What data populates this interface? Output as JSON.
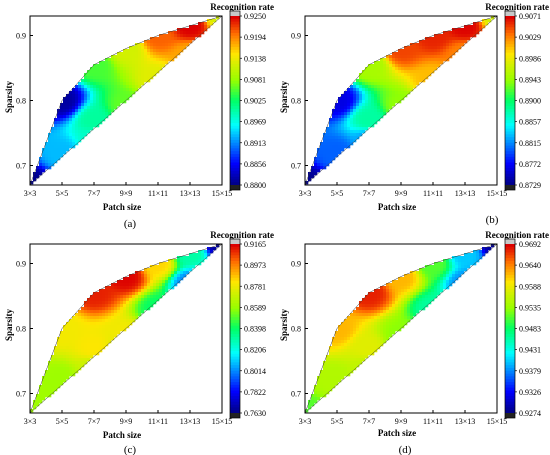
{
  "figure": {
    "panels": [
      {
        "caption": "(a)",
        "xlabel": "Patch size",
        "ylabel": "Sparsity",
        "colorbar_title": "Recognition rate",
        "colorbar_ticks": [
          "0.9250",
          "0.9194",
          "0.9138",
          "0.9081",
          "0.9025",
          "0.8969",
          "0.8913",
          "0.8856",
          "0.8800"
        ]
      },
      {
        "caption": "(b)",
        "xlabel": "Patch size",
        "ylabel": "Sparsity",
        "colorbar_title": "Recognition rate",
        "colorbar_ticks": [
          "0.9071",
          "0.9029",
          "0.8986",
          "0.8943",
          "0.8900",
          "0.8857",
          "0.8815",
          "0.8772",
          "0.8729"
        ]
      },
      {
        "caption": "(c)",
        "xlabel": "Patch size",
        "ylabel": "Sparsity",
        "colorbar_title": "Recognition rate",
        "colorbar_ticks": [
          "0.9165",
          "0.8973",
          "0.8781",
          "0.8589",
          "0.8398",
          "0.8206",
          "0.8014",
          "0.7822",
          "0.7630"
        ]
      },
      {
        "caption": "(d)",
        "xlabel": "Patch size",
        "ylabel": "Sparsity",
        "colorbar_title": "Recognition rate",
        "colorbar_ticks": [
          "0.9692",
          "0.9640",
          "0.9588",
          "0.9535",
          "0.9483",
          "0.9431",
          "0.9379",
          "0.9326",
          "0.9274"
        ]
      }
    ]
  },
  "chart_data": [
    {
      "type": "heatmap",
      "title": "",
      "xlabel": "Patch size",
      "ylabel": "Sparsity",
      "x_categories": [
        "3×3",
        "5×5",
        "7×7",
        "9×9",
        "11×11",
        "13×13",
        "15×15"
      ],
      "y_ticks": [
        0.7,
        0.8,
        0.9
      ],
      "ylim": [
        0.67,
        0.93
      ],
      "colorbar": {
        "label": "Recognition rate",
        "min": 0.88,
        "max": 0.925
      },
      "upper_boundary": [
        [
          0,
          0.67
        ],
        [
          1,
          0.8
        ],
        [
          2,
          0.855
        ],
        [
          3,
          0.88
        ],
        [
          4,
          0.9
        ],
        [
          5,
          0.915
        ],
        [
          6,
          0.93
        ]
      ],
      "lower_boundary": [
        [
          0,
          0.67
        ],
        [
          6,
          0.93
        ]
      ],
      "values": [
        [
          0,
          0.67,
          0.88
        ],
        [
          1,
          0.8,
          0.881
        ],
        [
          2,
          0.855,
          0.905
        ],
        [
          3,
          0.88,
          0.912
        ],
        [
          4,
          0.9,
          0.921
        ],
        [
          5,
          0.915,
          0.925
        ],
        [
          6,
          0.93,
          0.912
        ],
        [
          1,
          0.72,
          0.893
        ],
        [
          2,
          0.77,
          0.9
        ],
        [
          3,
          0.79,
          0.906
        ],
        [
          4,
          0.83,
          0.913
        ],
        [
          5,
          0.87,
          0.918
        ],
        [
          2,
          0.74,
          0.898
        ],
        [
          3,
          0.76,
          0.901
        ]
      ]
    },
    {
      "type": "heatmap",
      "title": "",
      "xlabel": "Patch size",
      "ylabel": "Sparsity",
      "x_categories": [
        "3×3",
        "5×5",
        "7×7",
        "9×9",
        "11×11",
        "13×13",
        "15×15"
      ],
      "y_ticks": [
        0.7,
        0.8,
        0.9
      ],
      "ylim": [
        0.67,
        0.93
      ],
      "colorbar": {
        "label": "Recognition rate",
        "min": 0.8729,
        "max": 0.9071
      },
      "upper_boundary": [
        [
          0,
          0.67
        ],
        [
          1,
          0.8
        ],
        [
          2,
          0.855
        ],
        [
          3,
          0.88
        ],
        [
          4,
          0.9
        ],
        [
          5,
          0.915
        ],
        [
          6,
          0.93
        ]
      ],
      "lower_boundary": [
        [
          0,
          0.67
        ],
        [
          6,
          0.93
        ]
      ],
      "values": [
        [
          0,
          0.67,
          0.873
        ],
        [
          1,
          0.8,
          0.876
        ],
        [
          2,
          0.855,
          0.895
        ],
        [
          3,
          0.88,
          0.905
        ],
        [
          4,
          0.9,
          0.906
        ],
        [
          5,
          0.915,
          0.907
        ],
        [
          6,
          0.93,
          0.897
        ],
        [
          1,
          0.72,
          0.88
        ],
        [
          2,
          0.77,
          0.888
        ],
        [
          3,
          0.79,
          0.894
        ],
        [
          4,
          0.83,
          0.901
        ],
        [
          5,
          0.87,
          0.903
        ],
        [
          2,
          0.74,
          0.882
        ],
        [
          3,
          0.76,
          0.888
        ]
      ]
    },
    {
      "type": "heatmap",
      "title": "",
      "xlabel": "Patch size",
      "ylabel": "Sparsity",
      "x_categories": [
        "3×3",
        "5×5",
        "7×7",
        "9×9",
        "11×11",
        "13×13",
        "15×15"
      ],
      "y_ticks": [
        0.7,
        0.8,
        0.9
      ],
      "ylim": [
        0.67,
        0.93
      ],
      "colorbar": {
        "label": "Recognition rate",
        "min": 0.763,
        "max": 0.9165
      },
      "upper_boundary": [
        [
          0,
          0.67
        ],
        [
          1,
          0.8
        ],
        [
          2,
          0.855
        ],
        [
          3,
          0.88
        ],
        [
          4,
          0.9
        ],
        [
          5,
          0.915
        ],
        [
          6,
          0.93
        ]
      ],
      "lower_boundary": [
        [
          0,
          0.67
        ],
        [
          6,
          0.93
        ]
      ],
      "values": [
        [
          0,
          0.67,
          0.86
        ],
        [
          1,
          0.8,
          0.88
        ],
        [
          2,
          0.855,
          0.912
        ],
        [
          3,
          0.88,
          0.916
        ],
        [
          4,
          0.9,
          0.885
        ],
        [
          5,
          0.915,
          0.83
        ],
        [
          6,
          0.93,
          0.765
        ],
        [
          1,
          0.72,
          0.86
        ],
        [
          2,
          0.77,
          0.882
        ],
        [
          3,
          0.79,
          0.88
        ],
        [
          4,
          0.83,
          0.84
        ],
        [
          5,
          0.87,
          0.8
        ],
        [
          2,
          0.74,
          0.87
        ],
        [
          3,
          0.76,
          0.86
        ]
      ]
    },
    {
      "type": "heatmap",
      "title": "",
      "xlabel": "Patch size",
      "ylabel": "Sparsity",
      "x_categories": [
        "3×3",
        "5×5",
        "7×7",
        "9×9",
        "11×11",
        "13×13",
        "15×15"
      ],
      "y_ticks": [
        0.7,
        0.8,
        0.9
      ],
      "ylim": [
        0.67,
        0.93
      ],
      "colorbar": {
        "label": "Recognition rate",
        "min": 0.9274,
        "max": 0.9692
      },
      "upper_boundary": [
        [
          0,
          0.67
        ],
        [
          1,
          0.8
        ],
        [
          2,
          0.855
        ],
        [
          3,
          0.88
        ],
        [
          4,
          0.9
        ],
        [
          5,
          0.915
        ],
        [
          6,
          0.93
        ]
      ],
      "lower_boundary": [
        [
          0,
          0.67
        ],
        [
          6,
          0.93
        ]
      ],
      "values": [
        [
          0,
          0.67,
          0.951
        ],
        [
          1,
          0.8,
          0.962
        ],
        [
          2,
          0.855,
          0.968
        ],
        [
          3,
          0.88,
          0.962
        ],
        [
          4,
          0.9,
          0.951
        ],
        [
          5,
          0.915,
          0.94
        ],
        [
          6,
          0.93,
          0.928
        ],
        [
          1,
          0.72,
          0.955
        ],
        [
          2,
          0.77,
          0.958
        ],
        [
          3,
          0.79,
          0.953
        ],
        [
          4,
          0.83,
          0.946
        ],
        [
          5,
          0.87,
          0.938
        ],
        [
          2,
          0.74,
          0.956
        ],
        [
          3,
          0.76,
          0.952
        ]
      ]
    }
  ]
}
